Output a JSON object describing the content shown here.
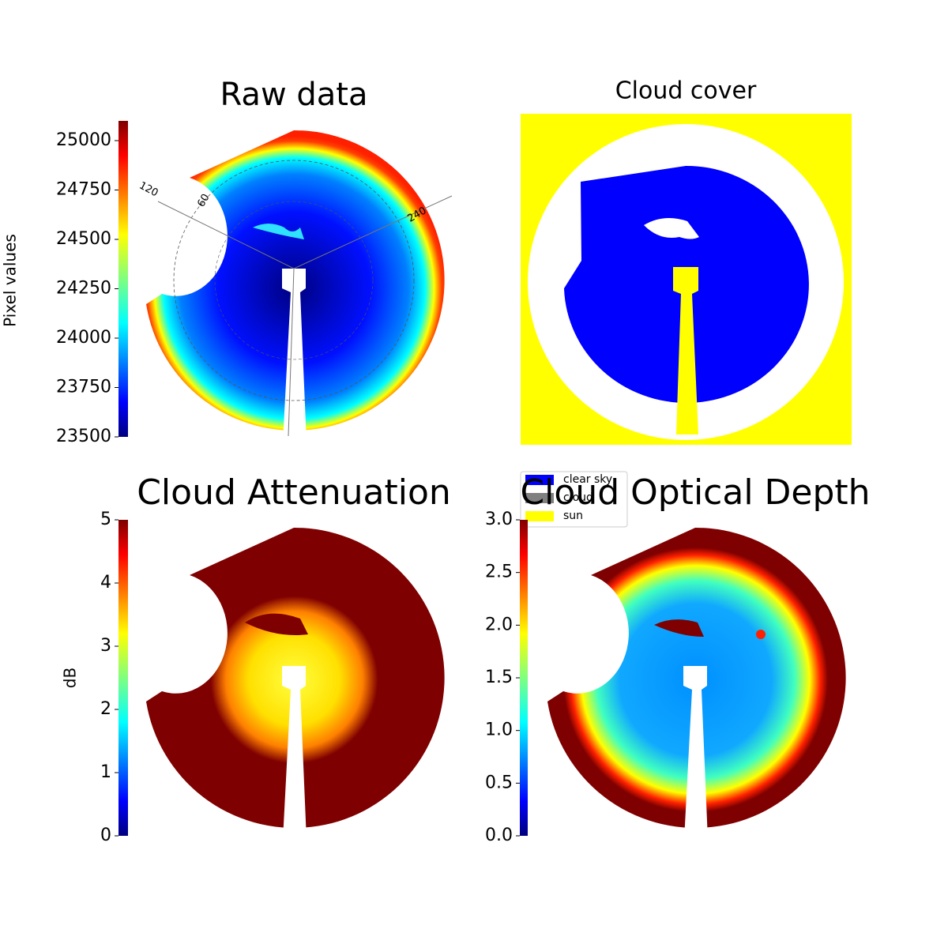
{
  "chart_data": [
    {
      "type": "image",
      "title": "Raw data",
      "clabel": "Pixel values",
      "clim": [
        23500,
        25100
      ],
      "cticks": [
        23500,
        23750,
        24000,
        24250,
        24500,
        24750,
        25000
      ],
      "polar_labels": [
        "120",
        "60",
        "240"
      ]
    },
    {
      "type": "image",
      "title": "Cloud cover",
      "series": [
        {
          "name": "clear sky",
          "color": "#0000ff"
        },
        {
          "name": "cloud",
          "color": "#808080"
        },
        {
          "name": "sun",
          "color": "#ffff00"
        }
      ]
    },
    {
      "type": "image",
      "title": "Cloud Attenuation",
      "clabel": "dB",
      "clim": [
        0,
        5
      ],
      "cticks": [
        0,
        1,
        2,
        3,
        4,
        5
      ]
    },
    {
      "type": "image",
      "title": "Cloud Optical Depth",
      "clim": [
        0,
        3
      ],
      "cticks": [
        {
          "value": 0,
          "label": "0.0"
        },
        {
          "value": 0.5,
          "label": "0.5"
        },
        {
          "value": 1,
          "label": "1.0"
        },
        {
          "value": 1.5,
          "label": "1.5"
        },
        {
          "value": 2,
          "label": "2.0"
        },
        {
          "value": 2.5,
          "label": "2.5"
        },
        {
          "value": 3,
          "label": "3.0"
        }
      ]
    }
  ]
}
